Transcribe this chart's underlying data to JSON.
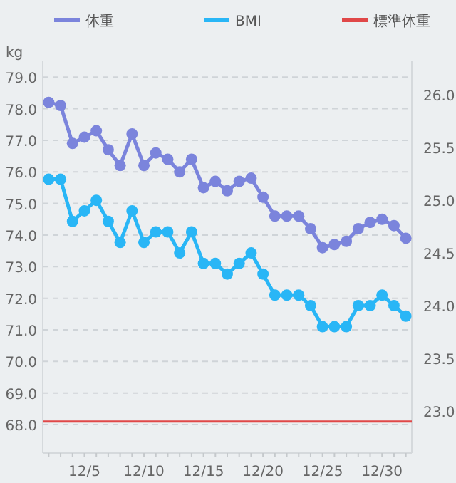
{
  "chart_data": {
    "type": "line",
    "ylabel": "kg",
    "legend": "top",
    "grid": "y",
    "marker": "circle",
    "line_style": "solid",
    "categories": [
      null,
      null,
      null,
      "12/5",
      null,
      null,
      null,
      null,
      "12/10",
      null,
      null,
      null,
      null,
      "12/15",
      null,
      null,
      null,
      null,
      "12/20",
      null,
      null,
      null,
      null,
      "12/25",
      null,
      null,
      null,
      null,
      "12/30",
      null,
      null
    ],
    "series": [
      {
        "name": "体重",
        "color": "#7b84dc",
        "values": [
          78.2,
          78.1,
          76.9,
          77.1,
          77.3,
          76.7,
          76.2,
          77.2,
          76.2,
          76.6,
          76.4,
          76.0,
          76.4,
          75.5,
          75.7,
          75.4,
          75.7,
          75.8,
          75.2,
          74.6,
          74.6,
          74.6,
          74.2,
          73.6,
          73.7,
          73.8,
          74.2,
          74.4,
          74.5,
          74.3,
          73.9
        ]
      },
      {
        "name": "BMI",
        "color": "#29b6f6",
        "axis": "y2",
        "values": [
          25.2,
          25.2,
          24.8,
          24.9,
          25.0,
          24.8,
          24.6,
          24.9,
          24.6,
          24.7,
          24.7,
          24.5,
          24.7,
          24.4,
          24.4,
          24.3,
          24.4,
          24.5,
          24.3,
          24.1,
          24.1,
          24.1,
          24.0,
          23.8,
          23.8,
          23.8,
          24.0,
          24.0,
          24.1,
          24.0,
          23.9
        ]
      }
    ],
    "ref_lines": [
      {
        "axis": "y",
        "value": 68.1,
        "label": "標準体重",
        "color": "#e04848"
      }
    ],
    "ylim": [
      67.1,
      79.5
    ],
    "yticks": [
      {
        "value": 68,
        "label": "68.0"
      },
      {
        "value": 69,
        "label": "69.0"
      },
      {
        "value": 70,
        "label": "70.0"
      },
      {
        "value": 71,
        "label": "71.0"
      },
      {
        "value": 72,
        "label": "72.0"
      },
      {
        "value": 73,
        "label": "73.0"
      },
      {
        "value": 74,
        "label": "74.0"
      },
      {
        "value": 75,
        "label": "75.0"
      },
      {
        "value": 76,
        "label": "76.0"
      },
      {
        "value": 77,
        "label": "77.0"
      },
      {
        "value": 78,
        "label": "78.0"
      },
      {
        "value": 79,
        "label": "79.0"
      }
    ],
    "y2lim": [
      22.6,
      26.32
    ],
    "y2ticks": [
      {
        "value": 23,
        "label": "23.0"
      },
      {
        "value": 23.5,
        "label": "23.5"
      },
      {
        "value": 24,
        "label": "24.0"
      },
      {
        "value": 24.5,
        "label": "24.5"
      },
      {
        "value": 25,
        "label": "25.0"
      },
      {
        "value": 25.5,
        "label": "25.5"
      },
      {
        "value": 26,
        "label": "26.0"
      }
    ]
  }
}
